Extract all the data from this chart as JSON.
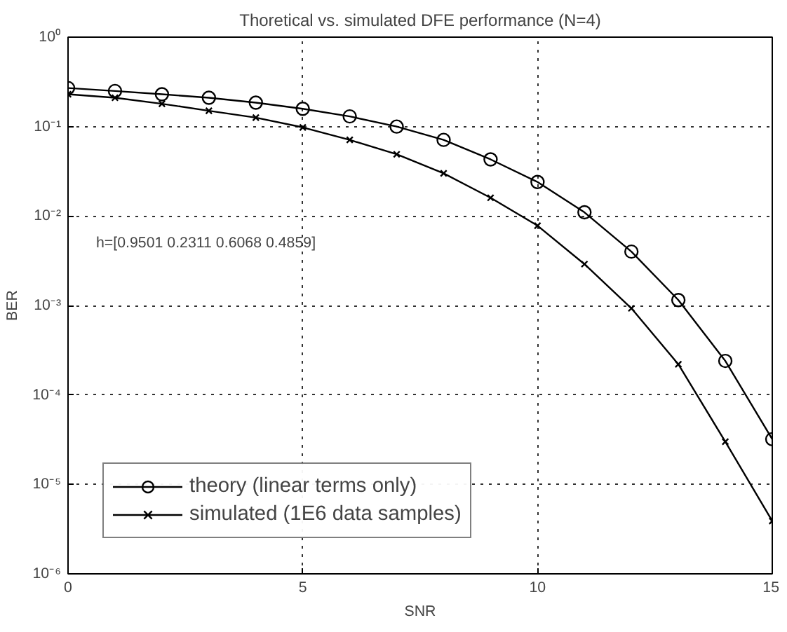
{
  "chart_data": {
    "type": "line",
    "title": "Thoretical vs. simulated DFE performance (N=4)",
    "xlabel": "SNR",
    "ylabel": "BER",
    "x": [
      0,
      1,
      2,
      3,
      4,
      5,
      6,
      7,
      8,
      9,
      10,
      11,
      12,
      13,
      14,
      15
    ],
    "series": [
      {
        "name": "theory (linear terms only)",
        "color": "#000000",
        "marker": "circle",
        "values": [
          0.27,
          0.25,
          0.23,
          0.21,
          0.185,
          0.158,
          0.13,
          0.1,
          0.071,
          0.043,
          0.024,
          0.011,
          0.004,
          0.00115,
          0.00024,
          3.2e-05
        ]
      },
      {
        "name": "simulated (1E6 data samples)",
        "color": "#000000",
        "marker": "cross",
        "values": [
          0.23,
          0.21,
          0.18,
          0.15,
          0.126,
          0.098,
          0.071,
          0.049,
          0.03,
          0.016,
          0.0078,
          0.0029,
          0.00093,
          0.00022,
          3e-05,
          3.9e-06
        ]
      }
    ],
    "log": "y",
    "xlim": [
      0,
      15
    ],
    "ylim": [
      1e-06,
      1
    ],
    "xticks": [
      0,
      5,
      10,
      15
    ],
    "yticks": [
      {
        "value": 1e-06,
        "label": "10⁻⁶"
      },
      {
        "value": 1e-05,
        "label": "10⁻⁵"
      },
      {
        "value": 0.0001,
        "label": "10⁻⁴"
      },
      {
        "value": 0.001,
        "label": "10⁻³"
      },
      {
        "value": 0.01,
        "label": "10⁻²"
      },
      {
        "value": 0.1,
        "label": "10⁻¹"
      },
      {
        "value": 1,
        "label": "10⁰"
      }
    ],
    "grid": true,
    "legend": "bottom left",
    "line_style": "solid",
    "annotations": [
      "h=[0.9501 0.2311 0.6068 0.4859]"
    ]
  }
}
